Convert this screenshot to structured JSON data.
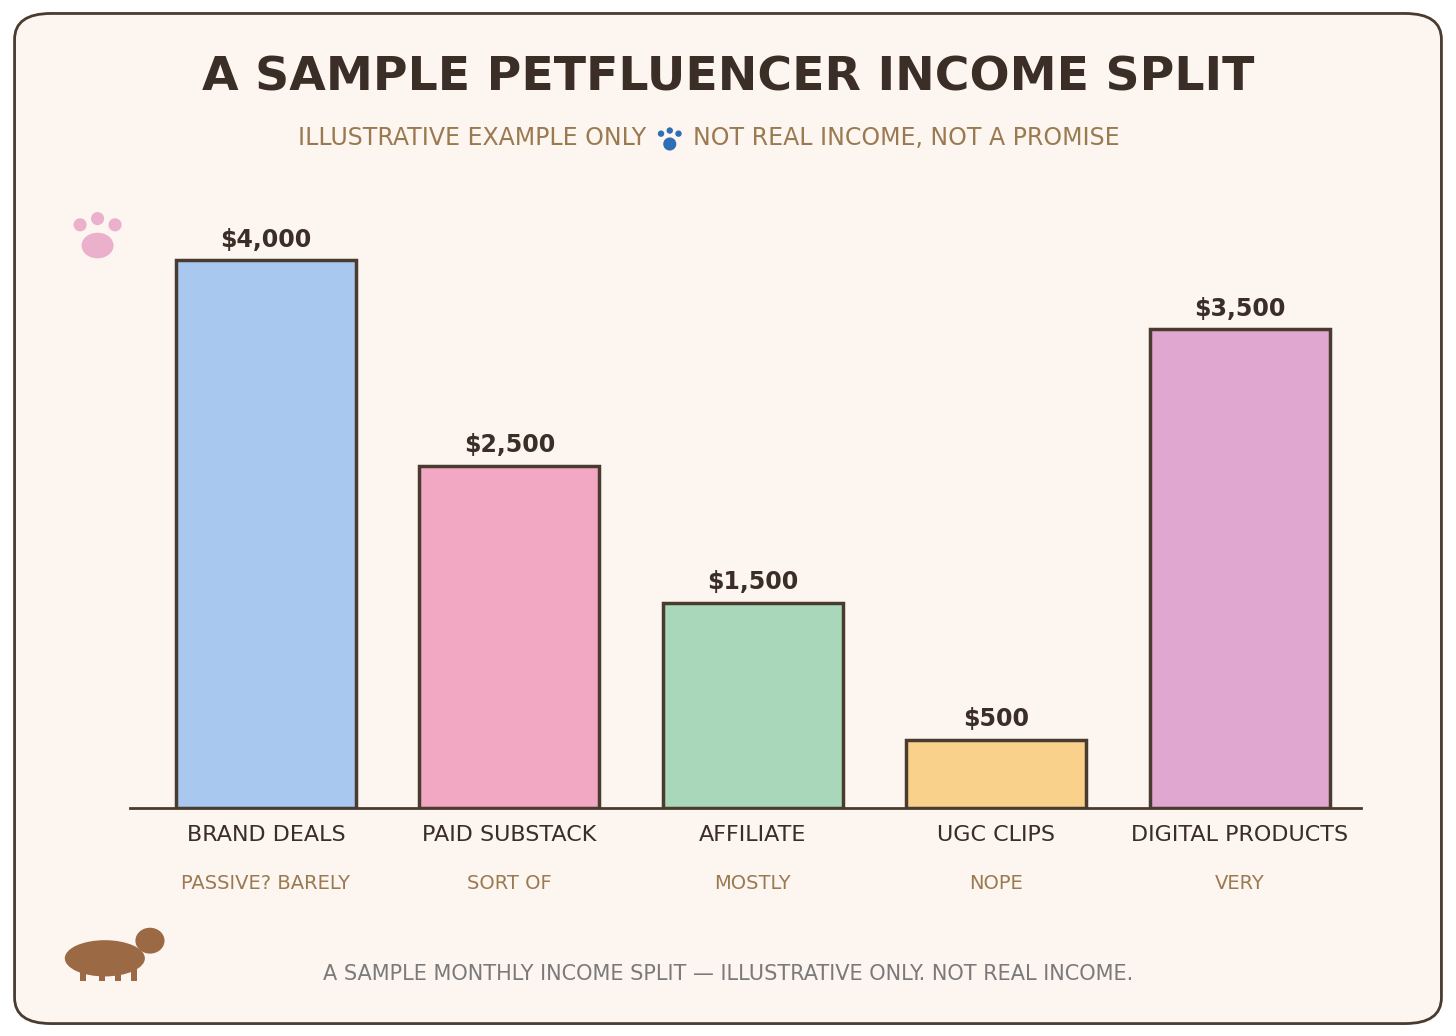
{
  "chart_data": {
    "type": "bar",
    "title": "A SAMPLE PETFLUENCER INCOME SPLIT",
    "subtitle": [
      "ILLUSTRATIVE EXAMPLE ONLY",
      "NOT REAL INCOME, NOT A PROMISE"
    ],
    "categories": [
      "BRAND DEALS",
      "PAID SUBSTACK",
      "AFFILIATE",
      "UGC CLIPS",
      "DIGITAL PRODUCTS"
    ],
    "category_notes": [
      "PASSIVE? BARELY",
      "SORT OF",
      "MOSTLY",
      "NOPE",
      "VERY"
    ],
    "values": [
      4000,
      2500,
      1500,
      500,
      3500
    ],
    "value_labels": [
      "$4,000",
      "$2,500",
      "$1,500",
      "$500",
      "$3,500"
    ],
    "colors": [
      "#a8c8f0",
      "#f2a7c3",
      "#a8d8b9",
      "#f9d18a",
      "#e0a8d0"
    ],
    "data_labels": true,
    "tick_labels": "x",
    "grid": false,
    "footer": "A SAMPLE MONTHLY INCOME SPLIT — ILLUSTRATIVE ONLY. NOT REAL INCOME."
  }
}
